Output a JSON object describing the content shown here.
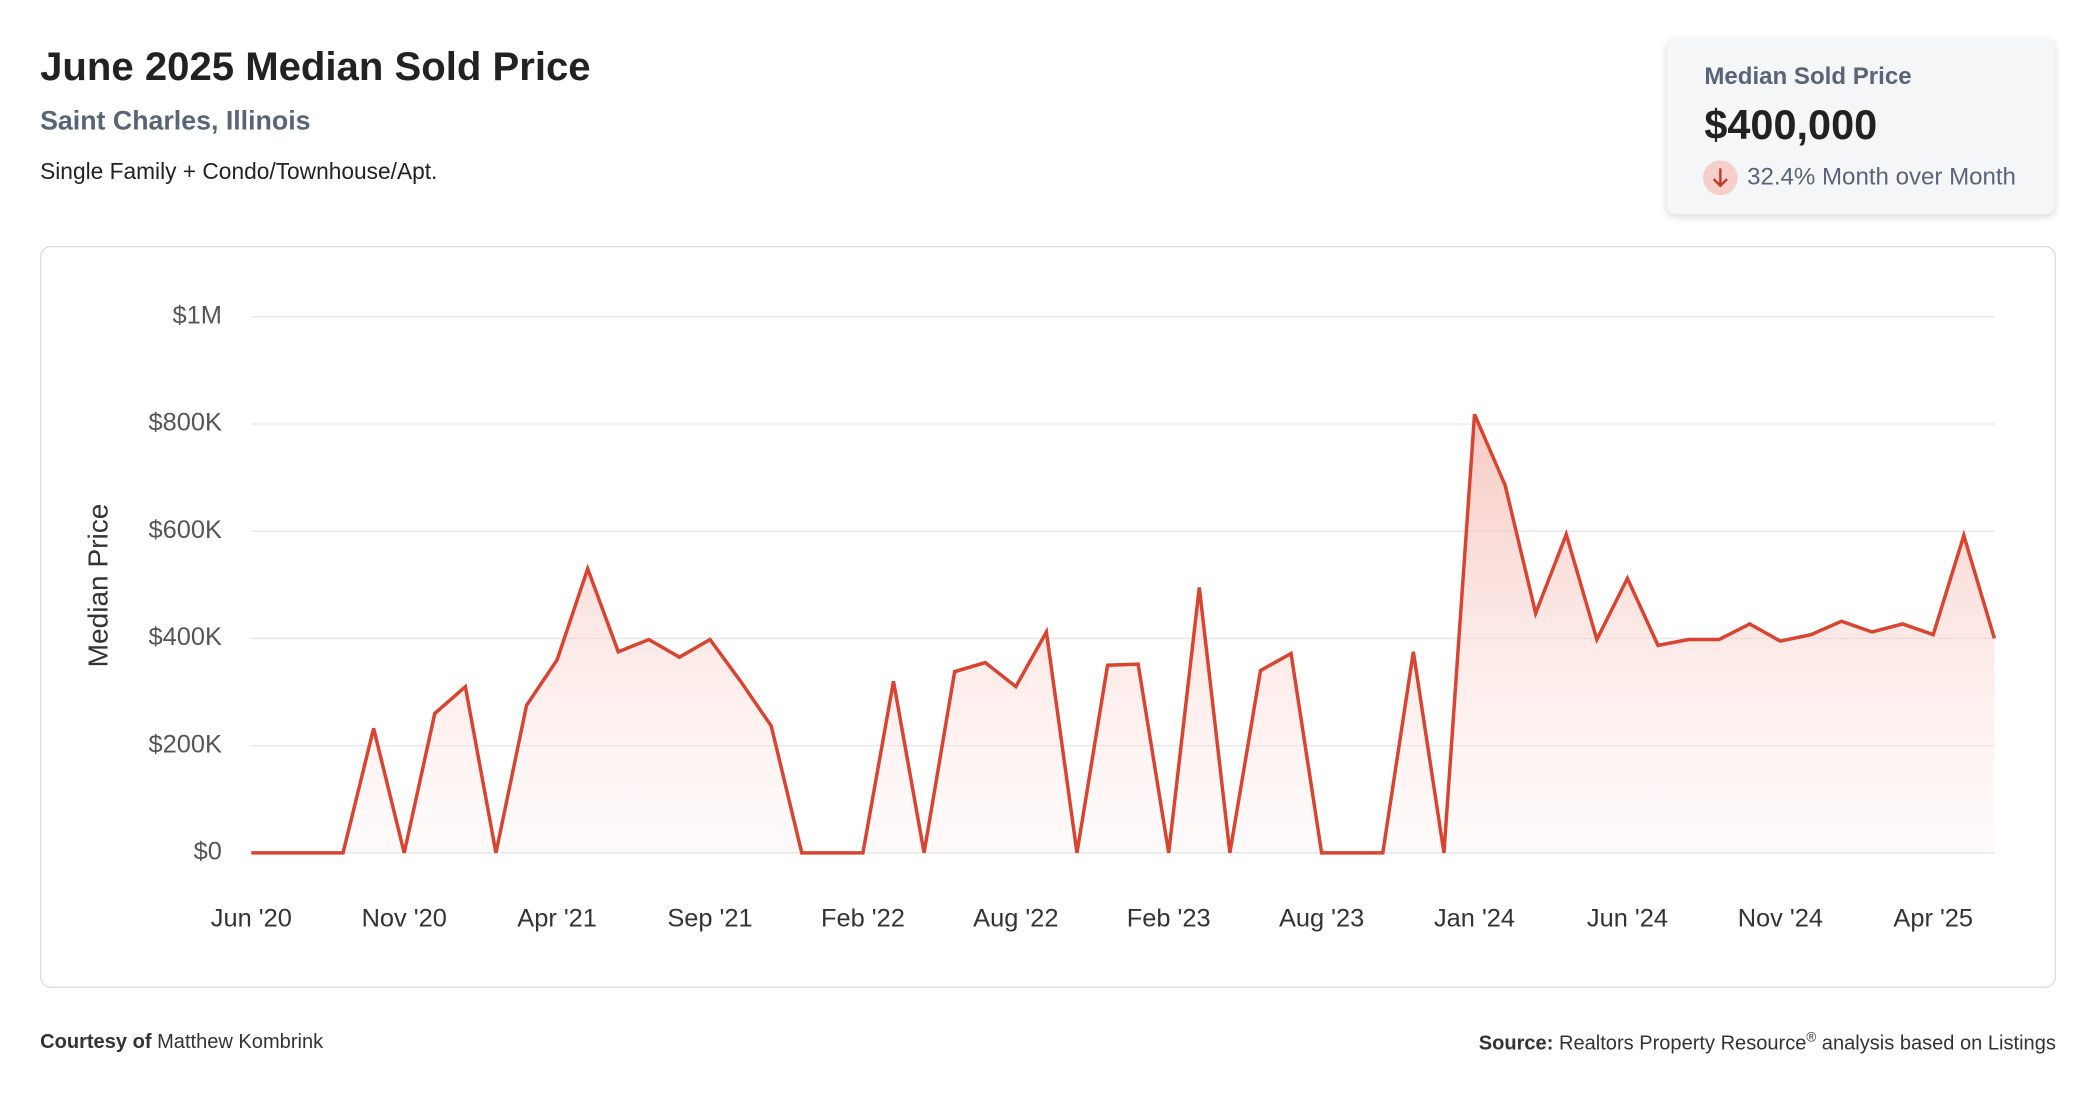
{
  "header": {
    "title": "June 2025 Median Sold Price",
    "subtitle": "Saint Charles, Illinois",
    "segment": "Single Family + Condo/Townhouse/Apt."
  },
  "card": {
    "label": "Median Sold Price",
    "value": "$400,000",
    "change": "32.4% Month over Month"
  },
  "chart_data": {
    "type": "line",
    "y_label": "Median Price",
    "color": "#d9432f",
    "grid": true,
    "categories": [
      "Jun '20",
      null,
      null,
      null,
      null,
      "Nov '20",
      null,
      null,
      null,
      null,
      "Apr '21",
      null,
      null,
      null,
      null,
      "Sep '21",
      null,
      null,
      null,
      null,
      "Feb '22",
      null,
      null,
      null,
      null,
      "Aug '22",
      null,
      null,
      null,
      null,
      "Feb '23",
      null,
      null,
      null,
      null,
      "Aug '23",
      null,
      null,
      null,
      null,
      "Jan '24",
      null,
      null,
      null,
      null,
      "Jun '24",
      null,
      null,
      null,
      null,
      "Nov '24",
      null,
      null,
      null,
      null,
      "Apr '25",
      null,
      null
    ],
    "values": [
      0,
      0,
      0,
      0,
      232000,
      0,
      260000,
      310000,
      0,
      275000,
      360000,
      530000,
      375000,
      398000,
      365000,
      398000,
      320000,
      237000,
      0,
      0,
      0,
      320000,
      0,
      338000,
      355000,
      310000,
      412000,
      0,
      350000,
      352000,
      0,
      495000,
      0,
      340000,
      372000,
      0,
      0,
      0,
      375000,
      0,
      818000,
      686000,
      447000,
      594000,
      398000,
      512000,
      387000,
      398000,
      398000,
      427000,
      395000,
      407000,
      432000,
      412000,
      427000,
      407000,
      592000,
      400000
    ],
    "ylim": [
      0,
      1000000
    ],
    "yticks": [
      {
        "value": 0,
        "label": "$0"
      },
      {
        "value": 200000,
        "label": "$200K"
      },
      {
        "value": 400000,
        "label": "$400K"
      },
      {
        "value": 600000,
        "label": "$600K"
      },
      {
        "value": 800000,
        "label": "$800K"
      },
      {
        "value": 1000000,
        "label": "$1M"
      }
    ]
  },
  "footer": {
    "courtesy_label": "Courtesy of",
    "courtesy_name": "Matthew Kombrink",
    "source_label": "Source:",
    "source_name": "Realtors Property Resource",
    "source_mark": "®",
    "source_rest": " analysis based on Listings"
  }
}
